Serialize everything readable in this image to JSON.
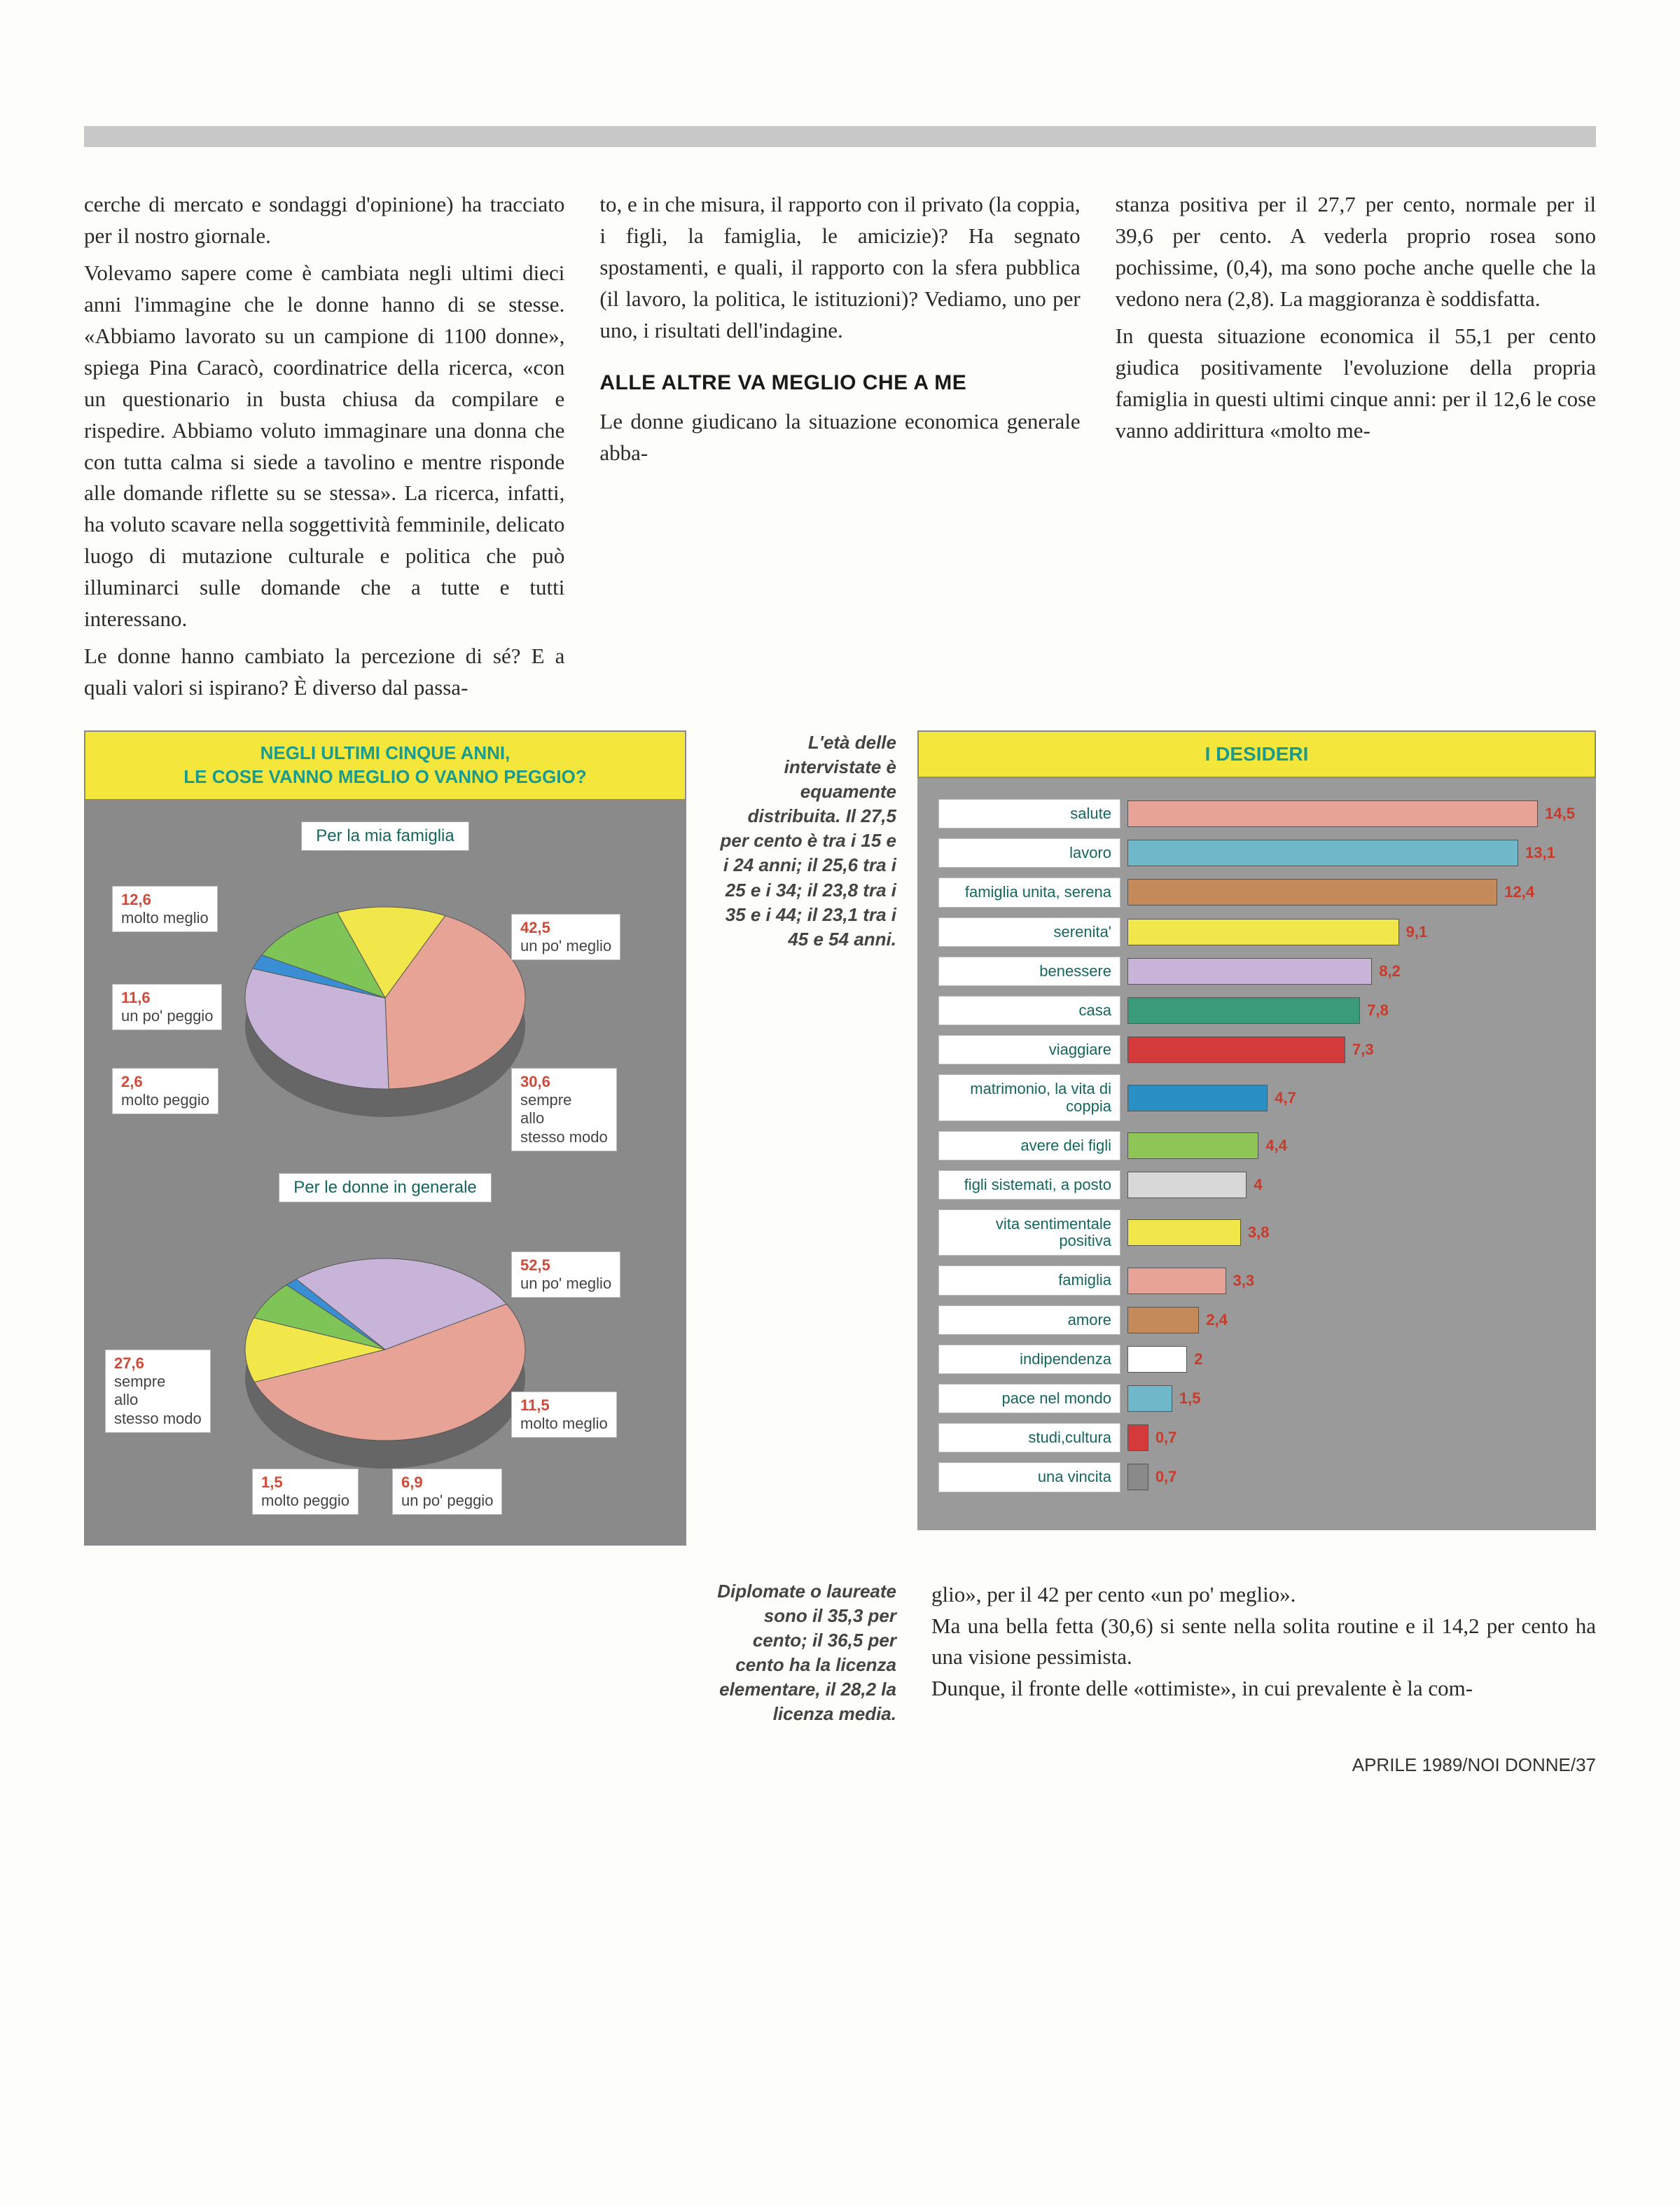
{
  "text": {
    "col1_p1": "cerche di mercato e sondaggi d'opinione) ha tracciato per il nostro giornale.",
    "col1_p2": "Volevamo sapere come è cambiata negli ultimi dieci anni l'immagine che le donne hanno di se stesse. «Abbiamo lavorato su un campione di 1100 donne», spiega Pina Caracò, coordinatrice della ricerca, «con un questionario in busta chiusa da compilare e rispedire. Abbiamo voluto immaginare una donna che con tutta calma si siede a tavolino e mentre risponde alle domande riflette su se stessa». La ricerca, infatti, ha voluto scavare nella soggettività femminile, delicato luogo di mutazione culturale e politica che può illuminarci sulle domande che a tutte e tutti interessano.",
    "col1_p3": "Le donne hanno cambiato la percezione di sé? E a quali valori si ispirano? È diverso dal passa-",
    "col2_p1": "to, e in che misura, il rapporto con il privato (la coppia, i figli, la famiglia, le amicizie)? Ha segnato spostamenti, e quali, il rapporto con la sfera pubblica (il lavoro, la politica, le istituzioni)? Vediamo, uno per uno, i risultati dell'indagine.",
    "subhead": "ALLE ALTRE VA MEGLIO CHE A ME",
    "col2_p2": "Le donne giudicano la situazione economica generale abba-",
    "col3_p1": "stanza positiva per il 27,7 per cento, normale per il 39,6 per cento. A vederla proprio rosea sono pochissime, (0,4), ma sono poche anche quelle che la vedono nera (2,8). La maggioranza è soddisfatta.",
    "col3_p2": "In questa situazione economica il 55,1 per cento giudica positivamente l'evoluzione della propria famiglia in questi ultimi cinque anni: per il 12,6 le cose vanno addirittura «molto me-",
    "note1": "L'età delle intervistate è equamente distribuita. Il 27,5 per cento è tra i 15 e i 24 anni; il 25,6 tra i 25 e i 34; il 23,8 tra i 35 e i 44; il 23,1 tra i 45 e 54 anni.",
    "note2": "Diplomate o laureate sono il 35,3 per cento; il 36,5 per cento ha la licenza elementare, il 28,2 la licenza media.",
    "bot_p1": "glio», per il 42 per cento «un po' meglio».",
    "bot_p2": "Ma una bella fetta (30,6) si sente nella solita routine e il 14,2 per cento ha una visione pessimista.",
    "bot_p3": "Dunque, il fronte delle «ottimiste», in cui prevalente è la com-",
    "footer": "APRILE 1989/NOI DONNE/37"
  },
  "pies": {
    "title1": "NEGLI ULTIMI CINQUE ANNI,",
    "title2": "LE COSE VANNO MEGLIO O VANNO PEGGIO?",
    "sub1": "Per la mia famiglia",
    "sub2": "Per le donne in generale",
    "pie1": {
      "slices": [
        {
          "label": "molto meglio",
          "value": 12.6,
          "color": "#f2e74a"
        },
        {
          "label": "un po' meglio",
          "value": 42.5,
          "color": "#e8a397"
        },
        {
          "label": "sempre allo stesso modo",
          "value": 30.6,
          "color": "#c9b4d9"
        },
        {
          "label": "molto peggio",
          "value": 2.6,
          "color": "#3a8fd4"
        },
        {
          "label": "un po' peggio",
          "value": 11.6,
          "color": "#7fc456"
        }
      ]
    },
    "pie2": {
      "slices": [
        {
          "label": "un po' meglio",
          "value": 52.5,
          "color": "#e8a397"
        },
        {
          "label": "molto meglio",
          "value": 11.5,
          "color": "#f2e74a"
        },
        {
          "label": "un po' peggio",
          "value": 6.9,
          "color": "#7fc456"
        },
        {
          "label": "molto peggio",
          "value": 1.5,
          "color": "#3a8fd4"
        },
        {
          "label": "sempre allo stesso modo",
          "value": 27.6,
          "color": "#c9b4d9"
        }
      ]
    }
  },
  "bars": {
    "title": "I DESIDERI",
    "max": 15,
    "items": [
      {
        "label": "salute",
        "value": 14.5,
        "color": "#e8a397"
      },
      {
        "label": "lavoro",
        "value": 13.1,
        "color": "#6fb8c9"
      },
      {
        "label": "famiglia unita, serena",
        "value": 12.4,
        "color": "#c48a5a"
      },
      {
        "label": "serenita'",
        "value": 9.1,
        "color": "#f2e74a"
      },
      {
        "label": "benessere",
        "value": 8.2,
        "color": "#c9b4d9"
      },
      {
        "label": "casa",
        "value": 7.8,
        "color": "#3a9b7a"
      },
      {
        "label": "viaggiare",
        "value": 7.3,
        "color": "#d43a3a"
      },
      {
        "label": "matrimonio, la vita di coppia",
        "value": 4.7,
        "color": "#2a8fc4"
      },
      {
        "label": "avere dei figli",
        "value": 4.4,
        "color": "#8fc456"
      },
      {
        "label": "figli sistemati, a posto",
        "value": 4.0,
        "color": "#d8d8d8"
      },
      {
        "label": "vita sentimentale positiva",
        "value": 3.8,
        "color": "#f2e74a"
      },
      {
        "label": "famiglia",
        "value": 3.3,
        "color": "#e8a397"
      },
      {
        "label": "amore",
        "value": 2.4,
        "color": "#c48a5a"
      },
      {
        "label": "indipendenza",
        "value": 2.0,
        "color": "#ffffff"
      },
      {
        "label": "pace nel mondo",
        "value": 1.5,
        "color": "#6fb8c9"
      },
      {
        "label": "studi,cultura",
        "value": 0.7,
        "color": "#d43a3a"
      },
      {
        "label": "una vincita",
        "value": 0.7,
        "color": "#8a8a8a"
      }
    ]
  }
}
